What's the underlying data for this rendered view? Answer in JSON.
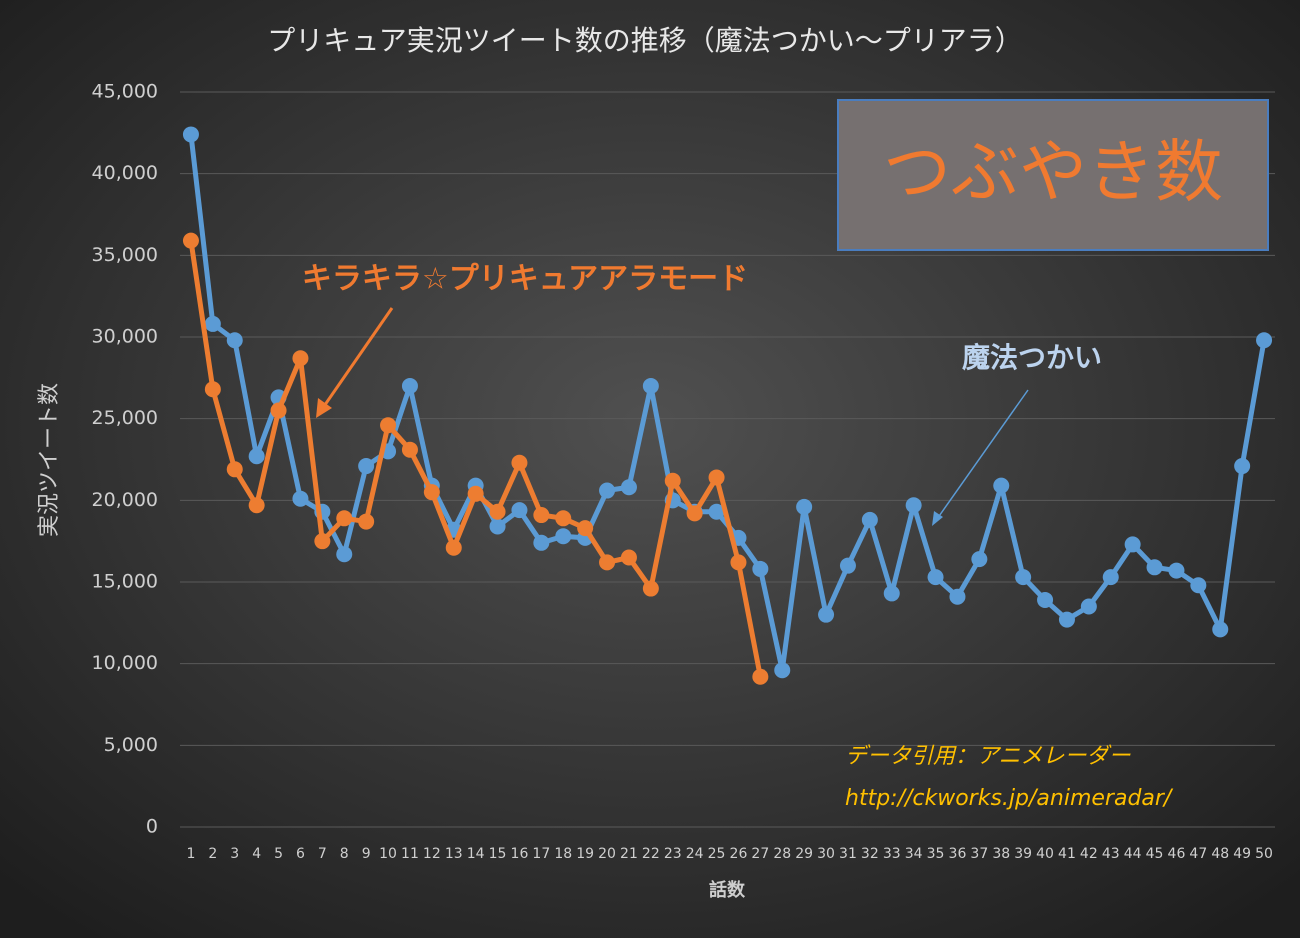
{
  "chart_data": {
    "type": "line",
    "title": "プリキュア実況ツイート数の推移（魔法つかい～プリアラ）",
    "y_axis_label": "実況ツイート数",
    "x_axis_label": "話数",
    "box_label": "つぶやき数",
    "source_lines": [
      "データ引用：アニメレーダー",
      "http://ckworks.jp/animeradar/"
    ],
    "categories": [
      "1",
      "2",
      "3",
      "4",
      "5",
      "6",
      "7",
      "8",
      "9",
      "10",
      "11",
      "12",
      "13",
      "14",
      "15",
      "16",
      "17",
      "18",
      "19",
      "20",
      "21",
      "22",
      "23",
      "24",
      "25",
      "26",
      "27",
      "28",
      "29",
      "30",
      "31",
      "32",
      "33",
      "34",
      "35",
      "36",
      "37",
      "38",
      "39",
      "40",
      "41",
      "42",
      "43",
      "44",
      "45",
      "46",
      "47",
      "48",
      "49",
      "50"
    ],
    "series": [
      {
        "name": "魔法つかい",
        "color": "#5b9bd5",
        "values": [
          42400,
          30800,
          29800,
          22700,
          26300,
          20100,
          19300,
          16700,
          22100,
          23000,
          27000,
          20900,
          18200,
          20900,
          18400,
          19400,
          17400,
          17800,
          17700,
          20600,
          20800,
          27000,
          20000,
          19300,
          19300,
          17700,
          15800,
          9600,
          19600,
          13000,
          16000,
          18800,
          14300,
          19700,
          15300,
          14100,
          16400,
          20900,
          15300,
          13900,
          12700,
          13500,
          15300,
          17300,
          15900,
          15700,
          14800,
          12100,
          22100,
          29800
        ]
      },
      {
        "name": "キラキラ☆プリキュアアラモード",
        "color": "#ed7d31",
        "values": [
          35900,
          26800,
          21900,
          19700,
          25500,
          28700,
          17500,
          18900,
          18700,
          24600,
          23100,
          20500,
          17100,
          20400,
          19300,
          22300,
          19100,
          18900,
          18300,
          16200,
          16500,
          14600,
          21200,
          19200,
          21400,
          16200,
          9200,
          null,
          null,
          null,
          null,
          null,
          null,
          null,
          null,
          null,
          null,
          null,
          null,
          null,
          null,
          null,
          null,
          null,
          null,
          null,
          null,
          null,
          null,
          null
        ]
      }
    ],
    "ylim": [
      0,
      45000
    ],
    "yticks": [
      0,
      {
        "value": 5000,
        "label": "5,000"
      },
      {
        "value": 10000,
        "label": "10,000"
      },
      {
        "value": 15000,
        "label": "15,000"
      },
      {
        "value": 20000,
        "label": "20,000"
      },
      {
        "value": 25000,
        "label": "25,000"
      },
      {
        "value": 30000,
        "label": "30,000"
      },
      {
        "value": 35000,
        "label": "35,000"
      },
      {
        "value": 40000,
        "label": "40,000"
      },
      {
        "value": 45000,
        "label": "45,000"
      }
    ],
    "grid": true
  }
}
